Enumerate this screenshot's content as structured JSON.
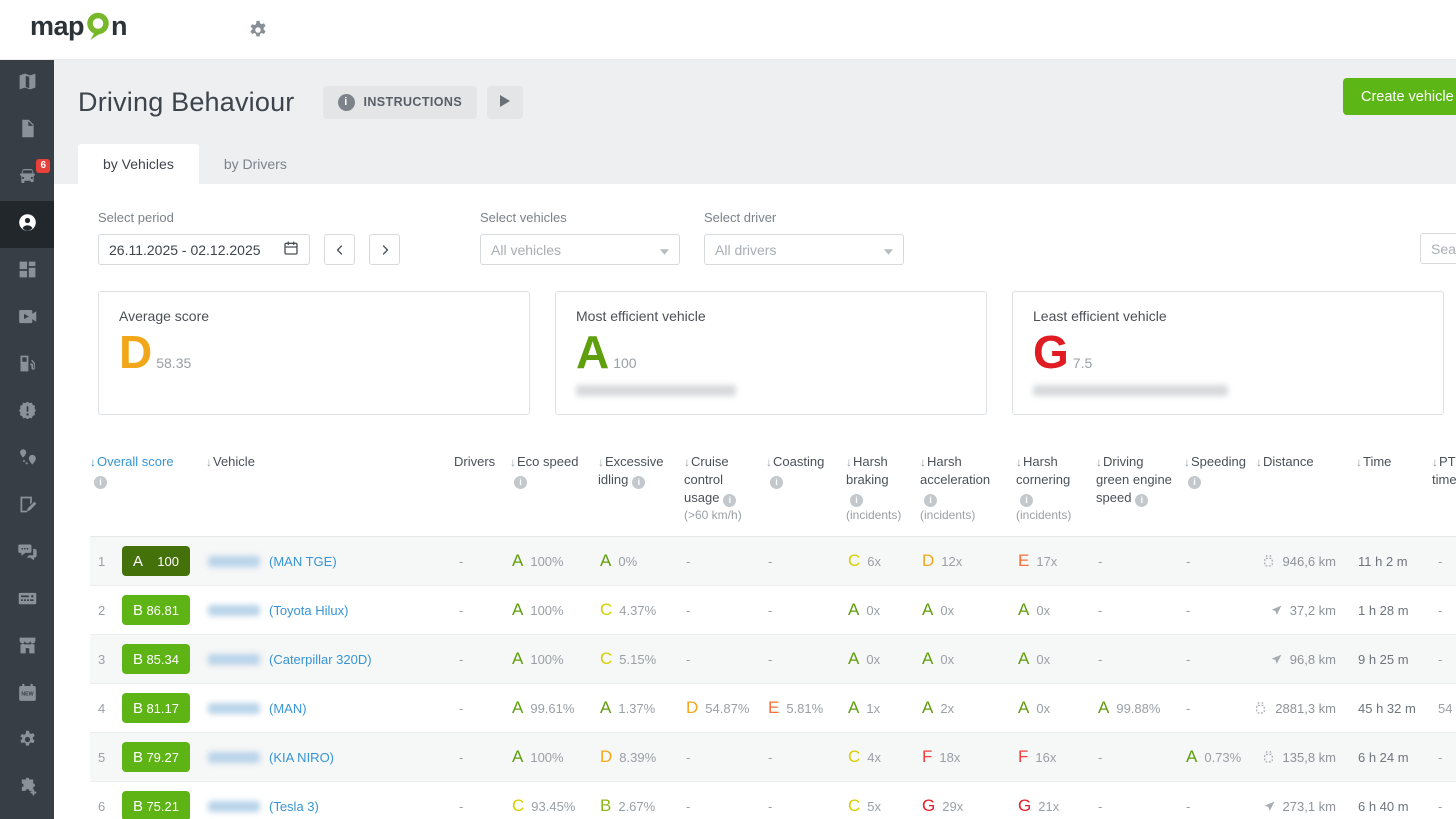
{
  "topbar": {
    "logo_left": "map",
    "logo_right": "n",
    "logo_color": "#76b82a"
  },
  "sidebar": {
    "items": [
      {
        "icon": "map",
        "name": "map"
      },
      {
        "icon": "document",
        "name": "reports"
      },
      {
        "icon": "truck",
        "name": "vehicles",
        "badge": "6"
      },
      {
        "icon": "person",
        "name": "drivers",
        "active": true
      },
      {
        "icon": "dashboard",
        "name": "dashboard"
      },
      {
        "icon": "camera",
        "name": "camera"
      },
      {
        "icon": "fuel",
        "name": "fuel"
      },
      {
        "icon": "alert",
        "name": "alerts"
      },
      {
        "icon": "route",
        "name": "routes"
      },
      {
        "icon": "tasks",
        "name": "tasks"
      },
      {
        "icon": "chat",
        "name": "messages"
      },
      {
        "icon": "card",
        "name": "payments"
      },
      {
        "icon": "store",
        "name": "marketplace"
      },
      {
        "icon": "calendar",
        "name": "calendar-new"
      },
      {
        "icon": "gear",
        "name": "settings"
      },
      {
        "icon": "puzzle",
        "name": "addons"
      }
    ]
  },
  "header": {
    "title": "Driving Behaviour",
    "instructions_label": "INSTRUCTIONS",
    "create_button": "Create vehicle report"
  },
  "tabs": [
    {
      "label": "by Vehicles",
      "active": true
    },
    {
      "label": "by Drivers",
      "active": false
    }
  ],
  "filters": {
    "period_label": "Select period",
    "period_value": "26.11.2025 - 02.12.2025",
    "vehicles_label": "Select vehicles",
    "vehicles_value": "All vehicles",
    "driver_label": "Select driver",
    "driver_value": "All drivers",
    "search_placeholder": "Search"
  },
  "summary_cards": [
    {
      "title": "Average score",
      "grade": "D",
      "score": "58.35",
      "vehicle_redacted": false
    },
    {
      "title": "Most efficient vehicle",
      "grade": "A",
      "score": "100",
      "vehicle_redacted": true
    },
    {
      "title": "Least efficient vehicle",
      "grade": "G",
      "score": "7.5",
      "vehicle_redacted": true,
      "wide_blur": true
    }
  ],
  "table": {
    "columns": [
      {
        "key": "overall",
        "label": "Overall score",
        "sort": true,
        "active": true,
        "info": "below"
      },
      {
        "key": "vehicle",
        "label": "Vehicle",
        "sort": true
      },
      {
        "key": "drivers",
        "label": "Drivers"
      },
      {
        "key": "eco",
        "label": "Eco speed",
        "sort": true,
        "info": "below"
      },
      {
        "key": "idling",
        "label": "Excessive idling",
        "sort": true,
        "info": "inline"
      },
      {
        "key": "cruise",
        "label": "Cruise control usage",
        "sort": true,
        "info": "inline",
        "sub": "(>60 km/h)"
      },
      {
        "key": "coasting",
        "label": "Coasting",
        "sort": true,
        "info": "below"
      },
      {
        "key": "braking",
        "label": "Harsh braking",
        "sort": true,
        "info": "below",
        "sub": "(incidents)"
      },
      {
        "key": "accel",
        "label": "Harsh acceleration",
        "sort": true,
        "info": "below",
        "sub": "(incidents)"
      },
      {
        "key": "cornering",
        "label": "Harsh cornering",
        "sort": true,
        "info": "below",
        "sub": "(incidents)"
      },
      {
        "key": "green",
        "label": "Driving green engine speed",
        "sort": true,
        "info": "inline"
      },
      {
        "key": "speeding",
        "label": "Speeding",
        "sort": true,
        "info": "below"
      },
      {
        "key": "distance",
        "label": "Distance",
        "sort": true
      },
      {
        "key": "time",
        "label": "Time",
        "sort": true
      },
      {
        "key": "pto",
        "label": "PTO time",
        "sort": true
      }
    ],
    "rows": [
      {
        "num": "1",
        "grade": "A",
        "score": "100",
        "plate_redacted": true,
        "vehicle": "(MAN TGE)",
        "cells": {
          "drivers": "-",
          "eco": {
            "g": "A",
            "v": "100%"
          },
          "idling": {
            "g": "A",
            "v": "0%"
          },
          "cruise": "-",
          "coasting": "-",
          "braking": {
            "g": "C",
            "v": "6x"
          },
          "accel": {
            "g": "D",
            "v": "12x"
          },
          "cornering": {
            "g": "E",
            "v": "17x"
          },
          "green": "-",
          "speeding": "-",
          "distance": {
            "icon": "can",
            "v": "946,6 km"
          },
          "time": "11 h 2 m",
          "pto": "-"
        }
      },
      {
        "num": "2",
        "grade": "B",
        "score": "86.81",
        "plate_redacted": true,
        "vehicle": "(Toyota Hilux)",
        "cells": {
          "drivers": "-",
          "eco": {
            "g": "A",
            "v": "100%"
          },
          "idling": {
            "g": "C",
            "v": "4.37%"
          },
          "cruise": "-",
          "coasting": "-",
          "braking": {
            "g": "A",
            "v": "0x"
          },
          "accel": {
            "g": "A",
            "v": "0x"
          },
          "cornering": {
            "g": "A",
            "v": "0x"
          },
          "green": "-",
          "speeding": "-",
          "distance": {
            "icon": "gps",
            "v": "37,2 km"
          },
          "time": "1 h 28 m",
          "pto": "-"
        }
      },
      {
        "num": "3",
        "grade": "B",
        "score": "85.34",
        "plate_redacted": true,
        "vehicle": "(Caterpillar 320D)",
        "cells": {
          "drivers": "-",
          "eco": {
            "g": "A",
            "v": "100%"
          },
          "idling": {
            "g": "C",
            "v": "5.15%"
          },
          "cruise": "-",
          "coasting": "-",
          "braking": {
            "g": "A",
            "v": "0x"
          },
          "accel": {
            "g": "A",
            "v": "0x"
          },
          "cornering": {
            "g": "A",
            "v": "0x"
          },
          "green": "-",
          "speeding": "-",
          "distance": {
            "icon": "gps",
            "v": "96,8 km"
          },
          "time": "9 h 25 m",
          "pto": "-"
        }
      },
      {
        "num": "4",
        "grade": "B",
        "score": "81.17",
        "plate_redacted": true,
        "vehicle": "(MAN)",
        "cells": {
          "drivers": "-",
          "eco": {
            "g": "A",
            "v": "99.61%"
          },
          "idling": {
            "g": "A",
            "v": "1.37%"
          },
          "cruise": {
            "g": "D",
            "v": "54.87%"
          },
          "coasting": {
            "g": "E",
            "v": "5.81%"
          },
          "braking": {
            "g": "A",
            "v": "1x"
          },
          "accel": {
            "g": "A",
            "v": "2x"
          },
          "cornering": {
            "g": "A",
            "v": "0x"
          },
          "green": {
            "g": "A",
            "v": "99.88%"
          },
          "speeding": "-",
          "distance": {
            "icon": "can",
            "v": "2881,3 km"
          },
          "time": "45 h 32 m",
          "pto": "54"
        }
      },
      {
        "num": "5",
        "grade": "B",
        "score": "79.27",
        "plate_redacted": true,
        "vehicle": "(KIA NIRO)",
        "cells": {
          "drivers": "-",
          "eco": {
            "g": "A",
            "v": "100%"
          },
          "idling": {
            "g": "D",
            "v": "8.39%"
          },
          "cruise": "-",
          "coasting": "-",
          "braking": {
            "g": "C",
            "v": "4x"
          },
          "accel": {
            "g": "F",
            "v": "18x"
          },
          "cornering": {
            "g": "F",
            "v": "16x"
          },
          "green": "-",
          "speeding": {
            "g": "A",
            "v": "0.73%"
          },
          "distance": {
            "icon": "can",
            "v": "135,8 km"
          },
          "time": "6 h 24 m",
          "pto": "-"
        }
      },
      {
        "num": "6",
        "grade": "B",
        "score": "75.21",
        "plate_redacted": true,
        "vehicle": "(Tesla 3)",
        "cells": {
          "drivers": "-",
          "eco": {
            "g": "C",
            "v": "93.45%"
          },
          "idling": {
            "g": "B",
            "v": "2.67%"
          },
          "cruise": "-",
          "coasting": "-",
          "braking": {
            "g": "C",
            "v": "5x"
          },
          "accel": {
            "g": "G",
            "v": "29x"
          },
          "cornering": {
            "g": "G",
            "v": "21x"
          },
          "green": "-",
          "speeding": "-",
          "distance": {
            "icon": "gps",
            "v": "273,1 km"
          },
          "time": "6 h 40 m",
          "pto": "-"
        }
      }
    ]
  },
  "colors": {
    "grades": {
      "A": "#5f9e0c",
      "B": "#8ab917",
      "C": "#d8ce00",
      "D": "#f2a71b",
      "E": "#f76f3d",
      "F": "#f43d3d",
      "G": "#e31d25"
    },
    "badges": {
      "A": "#44710a",
      "B": "#5eb414"
    },
    "big_grades": {
      "D": "#f2a71b",
      "A": "#5f9e0c",
      "G": "#e01b22"
    },
    "accent_blue": "#3795d3",
    "button_green": "#5cb615"
  }
}
